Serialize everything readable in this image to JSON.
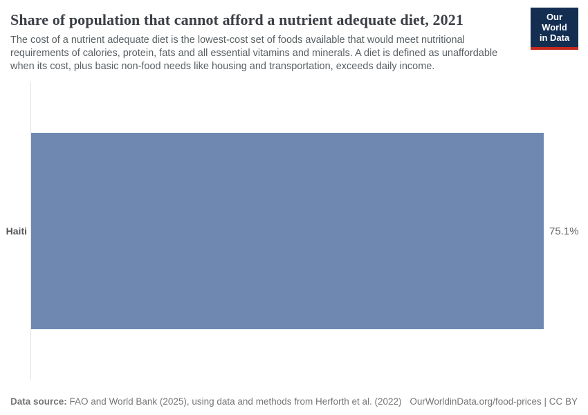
{
  "header": {
    "title": "Share of population that cannot afford a nutrient adequate diet, 2021",
    "subtitle": "The cost of a nutrient adequate diet is the lowest-cost set of foods available that would meet nutritional requirements of calories, protein, fats and all essential vitamins and minerals. A diet is defined as unaffordable when its cost, plus basic non-food needs like housing and transportation, exceeds daily income.",
    "logo": {
      "line1": "Our World",
      "line2": "in Data"
    }
  },
  "chart_data": {
    "type": "bar",
    "orientation": "horizontal",
    "title": "Share of population that cannot afford a nutrient adequate diet, 2021",
    "categories": [
      "Haiti"
    ],
    "values": [
      75.1
    ],
    "value_labels": [
      "75.1%"
    ],
    "unit": "%",
    "xlabel": "",
    "ylabel": "",
    "xlim": [
      0,
      75.1
    ],
    "grid": false,
    "legend": "none",
    "bar_color": "#6f88b1"
  },
  "footer": {
    "datasource_label": "Data source:",
    "datasource_text": " FAO and World Bank (2025), using data and methods from Herforth et al. (2022)",
    "link": "OurWorldinData.org/food-prices | CC BY"
  },
  "colors": {
    "bar": "#6f88b1",
    "logo_navy": "#142e52",
    "logo_red": "#c5281c",
    "axis_line": "#e2e2e2",
    "title_text": "#3b3f46",
    "subtitle_text": "#595f63",
    "footer_text": "#757575"
  }
}
